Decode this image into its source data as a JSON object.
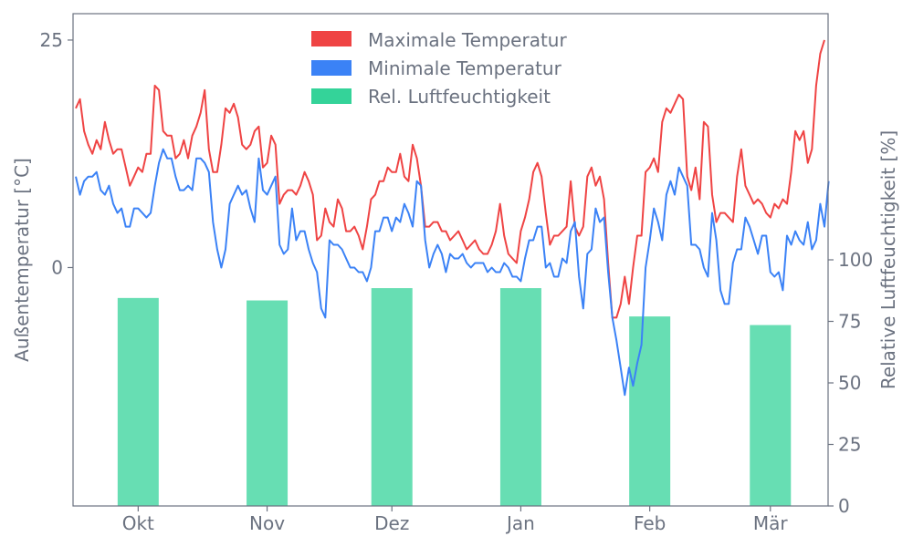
{
  "chart_data": {
    "type": "bar+line",
    "title": "",
    "ylabel_left": "Außentemperatur [°C]",
    "ylabel_right": "Relative Luftfeuchtigkeit [%]",
    "months": [
      "Okt",
      "Nov",
      "Dez",
      "Jan",
      "Feb",
      "Mär"
    ],
    "left_axis": {
      "ticks": [
        0,
        25
      ],
      "range": [
        -26.2,
        27.9
      ]
    },
    "right_axis": {
      "ticks": [
        0,
        25,
        50,
        75,
        100
      ],
      "range": [
        0,
        200
      ]
    },
    "legend": {
      "placement": "top-center",
      "entries": [
        "Maximale Temperatur",
        "Minimale Temperatur",
        "Rel. Luftfeuchtigkeit"
      ]
    },
    "colors": {
      "max": "#ef4444",
      "min": "#3b82f6",
      "humidity": "#34d399",
      "axis": "#6b7280"
    },
    "humidity": {
      "name": "Rel. Luftfeuchtigkeit",
      "values": [
        84.5,
        83.5,
        88.5,
        88.5,
        77.0,
        73.5
      ],
      "x": [
        "2023-10-01",
        "2023-11-01",
        "2023-12-01",
        "2024-01-01",
        "2024-02-01",
        "2024-03-01"
      ]
    },
    "x_start": "2023-09-16",
    "series": [
      {
        "name": "Maximale Temperatur",
        "values": [
          17.5,
          18.5,
          15,
          13.5,
          12.5,
          14,
          13,
          16,
          14,
          12.5,
          13,
          13,
          11,
          9,
          10,
          11,
          10.5,
          12.5,
          12.5,
          20,
          19.5,
          15,
          14.5,
          14.5,
          12,
          12.5,
          14,
          12,
          14.5,
          15.5,
          17,
          19.5,
          13,
          10.5,
          10.5,
          13.5,
          17.5,
          17,
          18,
          16.5,
          13.5,
          13,
          13.5,
          15,
          15.5,
          11,
          11.5,
          14.5,
          13.5,
          7,
          8,
          8.5,
          8.5,
          8,
          9,
          10.5,
          9.5,
          8,
          3,
          3.5,
          6.5,
          5,
          4.5,
          7.5,
          6.5,
          4,
          4,
          4.5,
          3.5,
          2,
          4.5,
          7.5,
          8,
          9.5,
          9.5,
          11,
          10.5,
          10.5,
          12.5,
          10,
          9.5,
          13.5,
          12,
          9,
          4.5,
          4.5,
          5,
          5,
          4,
          4,
          3,
          3.5,
          4,
          3,
          2,
          2.5,
          3,
          2,
          1.5,
          1.5,
          2.5,
          4,
          7,
          3.5,
          1.5,
          1,
          0.5,
          4,
          5.5,
          7.5,
          10.5,
          11.5,
          10,
          6,
          2.5,
          3.5,
          3.5,
          4,
          4.5,
          9.5,
          4.5,
          3.5,
          4.5,
          10,
          11,
          9,
          10,
          7.5,
          0.5,
          -5.5,
          -5.5,
          -4,
          -1,
          -4,
          0,
          3.5,
          3.5,
          10.5,
          11,
          12,
          10.5,
          16,
          17.5,
          17,
          18,
          19,
          18.5,
          10,
          8.5,
          11,
          7.5,
          16,
          15.5,
          8,
          5,
          6,
          6,
          5.5,
          5,
          10,
          13,
          9,
          8,
          7,
          7.5,
          7,
          6,
          5.5,
          7,
          6.5,
          7.5,
          7,
          10.5,
          15,
          14,
          15,
          11.5,
          13,
          20,
          23.5,
          25
        ]
      },
      {
        "name": "Minimale Temperatur",
        "values": [
          10,
          8,
          9.5,
          10,
          10,
          10.5,
          8.5,
          8,
          9,
          7,
          6,
          6.5,
          4.5,
          4.5,
          6.5,
          6.5,
          6,
          5.5,
          6,
          9,
          11.5,
          13,
          12,
          12,
          10,
          8.5,
          8.5,
          9,
          8.5,
          12,
          12,
          11.5,
          10.5,
          5,
          2,
          0,
          2,
          7,
          8,
          9,
          8,
          8.5,
          6.5,
          5,
          12,
          8.5,
          8,
          9,
          10,
          2.5,
          1.5,
          2,
          6.5,
          3,
          4,
          4,
          2,
          0.5,
          -0.5,
          -4.5,
          -5.5,
          3,
          2.5,
          2.5,
          2,
          1,
          0,
          0,
          -0.5,
          -0.5,
          -1.5,
          0,
          4,
          4,
          5.5,
          5.5,
          4,
          5.5,
          5,
          7,
          6,
          4.5,
          9.5,
          9,
          3,
          0,
          1.5,
          2.5,
          1.5,
          -0.5,
          1.5,
          1,
          1,
          1.5,
          0.5,
          0,
          0.5,
          0.5,
          0.5,
          -0.5,
          0,
          -0.5,
          -0.5,
          0.5,
          0,
          -1,
          -1,
          -1.5,
          1,
          3,
          3,
          4.5,
          4.5,
          0,
          0.5,
          -1,
          -1,
          1,
          0.5,
          4,
          5,
          -1,
          -4.5,
          1.5,
          2,
          6.5,
          5,
          5.5,
          -0.5,
          -5.5,
          -8,
          -11,
          -14,
          -11,
          -13,
          -10.5,
          -8.5,
          0,
          3,
          6.5,
          5,
          3,
          8,
          9.5,
          8,
          11,
          10,
          9,
          2.5,
          2.5,
          2,
          0,
          -1,
          6,
          3,
          -2.5,
          -4,
          -4,
          0.5,
          2,
          2,
          5.5,
          4.5,
          3,
          1.5,
          3.5,
          3.5,
          -0.5,
          -1,
          -0.5,
          -2.5,
          3.5,
          2.5,
          4,
          3,
          2.5,
          5,
          2,
          3,
          7,
          4.5,
          9.5
        ]
      }
    ]
  }
}
